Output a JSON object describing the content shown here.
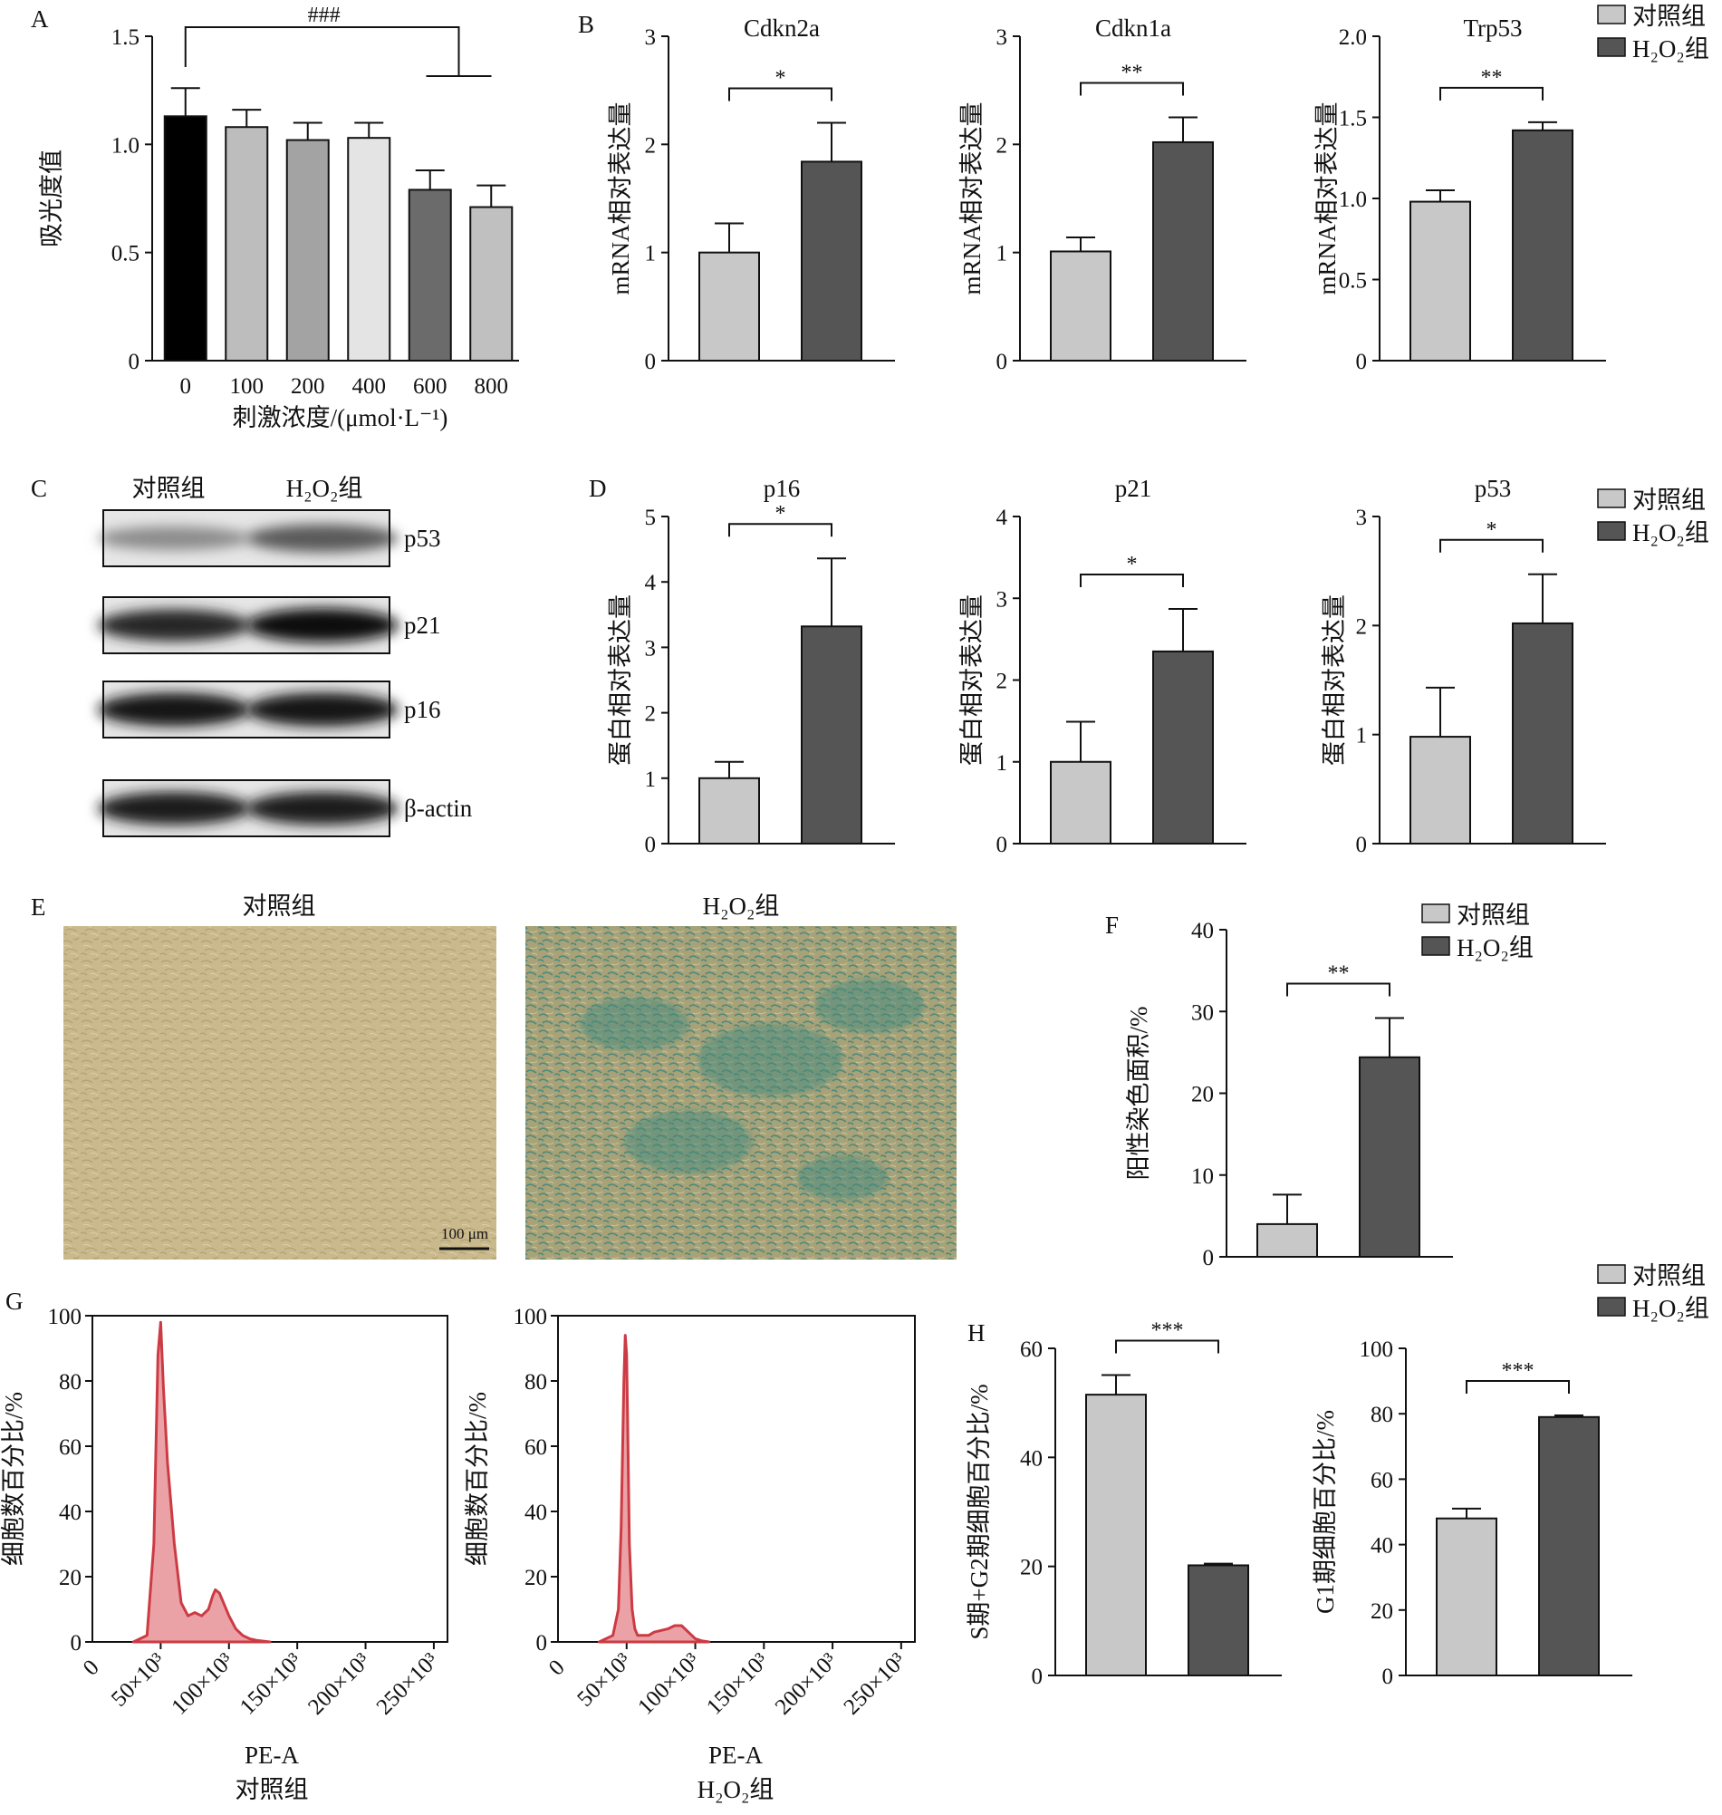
{
  "legend": {
    "control": "对照组",
    "h2o2": "H₂O₂组"
  },
  "colors": {
    "control": "#c8c8c8",
    "h2o2": "#555555",
    "doses": [
      "#000000",
      "#bdbdbd",
      "#a3a3a3",
      "#e4e4e4",
      "#6b6b6b",
      "#c0c0c0"
    ],
    "flow": "#cc3b44",
    "flow_fill": "#eba2a6",
    "micro_control": "#c9b98c",
    "micro_h2o2": "#6fa38f"
  },
  "panel_letters": [
    "A",
    "B",
    "C",
    "D",
    "E",
    "F",
    "G",
    "H"
  ],
  "blots": {
    "header_control": "对照组",
    "header_h2o2": "H₂O₂组",
    "rows": [
      {
        "label": "p53",
        "control_intensity": 0.35,
        "h2o2_intensity": 0.6
      },
      {
        "label": "p21",
        "control_intensity": 0.85,
        "h2o2_intensity": 0.98
      },
      {
        "label": "p16",
        "control_intensity": 0.95,
        "h2o2_intensity": 0.95
      },
      {
        "label": "β-actin",
        "control_intensity": 0.92,
        "h2o2_intensity": 0.92
      }
    ]
  },
  "micro": {
    "title_control": "对照组",
    "title_h2o2": "H₂O₂组",
    "scale_bar": "100 μm"
  },
  "chart_data": [
    {
      "id": "A",
      "type": "bar",
      "title": "",
      "xlabel": "刺激浓度/(μmol·L⁻¹)",
      "ylabel": "吸光度值",
      "categories": [
        "0",
        "100",
        "200",
        "400",
        "600",
        "800"
      ],
      "values": [
        1.13,
        1.08,
        1.02,
        1.03,
        0.79,
        0.71
      ],
      "errors": [
        0.13,
        0.08,
        0.08,
        0.07,
        0.09,
        0.1
      ],
      "ylim": [
        0,
        1.5
      ],
      "yticks": [
        "0",
        "0.5",
        "1.0",
        "1.5"
      ],
      "ytick_values": [
        0,
        0.5,
        1.0,
        1.5
      ],
      "significance": "###"
    },
    {
      "id": "B1",
      "type": "bar",
      "title": "Cdkn2a",
      "ylabel": "mRNA相对表达量",
      "values": [
        1.0,
        1.84
      ],
      "errors": [
        0.27,
        0.36
      ],
      "ylim": [
        0,
        3
      ],
      "yticks": [
        "0",
        "1",
        "2",
        "3"
      ],
      "ytick_values": [
        0,
        1,
        2,
        3
      ],
      "significance": "*"
    },
    {
      "id": "B2",
      "type": "bar",
      "title": "Cdkn1a",
      "ylabel": "mRNA相对表达量",
      "values": [
        1.01,
        2.02
      ],
      "errors": [
        0.13,
        0.23
      ],
      "ylim": [
        0,
        3
      ],
      "yticks": [
        "0",
        "1",
        "2",
        "3"
      ],
      "ytick_values": [
        0,
        1,
        2,
        3
      ],
      "significance": "**"
    },
    {
      "id": "B3",
      "type": "bar",
      "title": "Trp53",
      "ylabel": "mRNA相对表达量",
      "values": [
        0.98,
        1.42
      ],
      "errors": [
        0.07,
        0.05
      ],
      "ylim": [
        0,
        2.0
      ],
      "yticks": [
        "0",
        "0.5",
        "1.0",
        "1.5",
        "2.0"
      ],
      "ytick_values": [
        0,
        0.5,
        1.0,
        1.5,
        2.0
      ],
      "significance": "**"
    },
    {
      "id": "D1",
      "type": "bar",
      "title": "p16",
      "ylabel": "蛋白相对表达量",
      "values": [
        1.0,
        3.32
      ],
      "errors": [
        0.25,
        1.04
      ],
      "ylim": [
        0,
        5
      ],
      "yticks": [
        "0",
        "1",
        "2",
        "3",
        "4",
        "5"
      ],
      "ytick_values": [
        0,
        1,
        2,
        3,
        4,
        5
      ],
      "significance": "*"
    },
    {
      "id": "D2",
      "type": "bar",
      "title": "p21",
      "ylabel": "蛋白相对表达量",
      "values": [
        1.0,
        2.35
      ],
      "errors": [
        0.49,
        0.52
      ],
      "ylim": [
        0,
        4
      ],
      "yticks": [
        "0",
        "1",
        "2",
        "3",
        "4"
      ],
      "ytick_values": [
        0,
        1,
        2,
        3,
        4
      ],
      "significance": "*"
    },
    {
      "id": "D3",
      "type": "bar",
      "title": "p53",
      "ylabel": "蛋白相对表达量",
      "values": [
        0.98,
        2.02
      ],
      "errors": [
        0.45,
        0.45
      ],
      "ylim": [
        0,
        3
      ],
      "yticks": [
        "0",
        "1",
        "2",
        "3"
      ],
      "ytick_values": [
        0,
        1,
        2,
        3
      ],
      "significance": "*"
    },
    {
      "id": "F",
      "type": "bar",
      "title": "",
      "ylabel": "阳性染色面积/%",
      "values": [
        4.0,
        24.4
      ],
      "errors": [
        3.6,
        4.8
      ],
      "ylim": [
        0,
        40
      ],
      "yticks": [
        "0",
        "10",
        "20",
        "30",
        "40"
      ],
      "ytick_values": [
        0,
        10,
        20,
        30,
        40
      ],
      "significance": "**"
    },
    {
      "id": "G1",
      "type": "area",
      "title": "",
      "caption": "对照组",
      "xlabel": "PE-A",
      "ylabel": "细胞数百分比/%",
      "x": [
        30,
        40,
        45,
        48,
        50,
        52,
        55,
        60,
        65,
        70,
        75,
        80,
        85,
        88,
        90,
        93,
        96,
        100,
        105,
        110,
        115,
        120,
        130
      ],
      "y": [
        0,
        2,
        30,
        88,
        98,
        78,
        55,
        30,
        12,
        8,
        9,
        8,
        10,
        14,
        16,
        15,
        12,
        8,
        4,
        2,
        1,
        0.5,
        0
      ],
      "xlim": [
        0,
        260
      ],
      "ylim": [
        0,
        100
      ],
      "xticks": [
        "50×10³",
        "100×10³",
        "150×10³",
        "200×10³",
        "250×10³"
      ],
      "xtick_values": [
        50,
        100,
        150,
        200,
        250
      ],
      "x0_label": "0",
      "yticks": [
        "0",
        "20",
        "40",
        "60",
        "80",
        "100"
      ],
      "ytick_values": [
        0,
        20,
        40,
        60,
        80,
        100
      ]
    },
    {
      "id": "G2",
      "type": "area",
      "title": "",
      "caption": "H₂O₂组",
      "xlabel": "PE-A",
      "ylabel": "细胞数百分比/%",
      "x": [
        30,
        40,
        44,
        46,
        48,
        49,
        50,
        51,
        52,
        54,
        56,
        58,
        62,
        66,
        70,
        80,
        85,
        90,
        95,
        100,
        105,
        110
      ],
      "y": [
        0,
        2,
        10,
        35,
        80,
        94,
        88,
        60,
        30,
        10,
        4,
        2,
        2,
        2,
        3,
        4,
        5,
        5,
        3,
        1,
        0.3,
        0
      ],
      "xlim": [
        0,
        260
      ],
      "ylim": [
        0,
        100
      ],
      "xticks": [
        "50×10³",
        "100×10³",
        "150×10³",
        "200×10³",
        "250×10³"
      ],
      "xtick_values": [
        50,
        100,
        150,
        200,
        250
      ],
      "x0_label": "0",
      "yticks": [
        "0",
        "20",
        "40",
        "60",
        "80",
        "100"
      ],
      "ytick_values": [
        0,
        20,
        40,
        60,
        80,
        100
      ]
    },
    {
      "id": "H1",
      "type": "bar",
      "title": "",
      "ylabel": "S期+G2期细胞百分比/%",
      "values": [
        51.5,
        20.2
      ],
      "errors": [
        3.6,
        0.3
      ],
      "ylim": [
        0,
        60
      ],
      "yticks": [
        "0",
        "20",
        "40",
        "60"
      ],
      "ytick_values": [
        0,
        20,
        40,
        60
      ],
      "significance": "***"
    },
    {
      "id": "H2",
      "type": "bar",
      "title": "",
      "ylabel": "G1期细胞百分比/%",
      "values": [
        48.0,
        79.0
      ],
      "errors": [
        3.0,
        0.5
      ],
      "ylim": [
        0,
        100
      ],
      "yticks": [
        "0",
        "20",
        "40",
        "60",
        "80",
        "100"
      ],
      "ytick_values": [
        0,
        20,
        40,
        60,
        80,
        100
      ],
      "significance": "***"
    }
  ]
}
